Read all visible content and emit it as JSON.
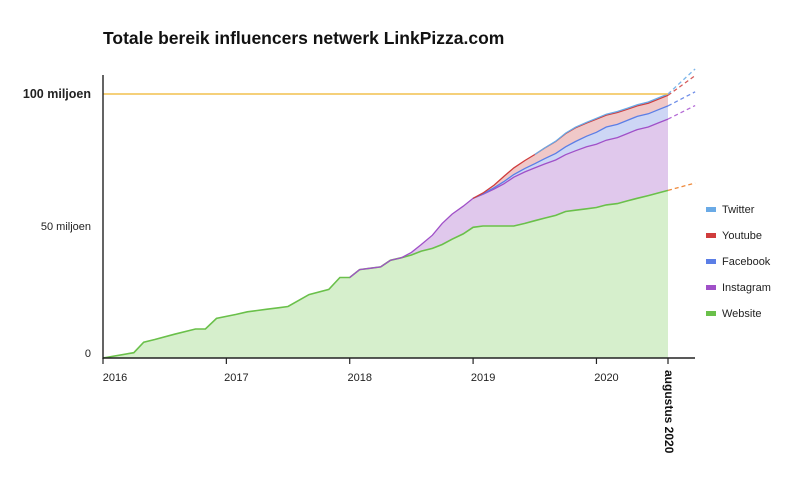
{
  "chart_data": {
    "type": "area",
    "title": "Totale bereik influencers netwerk LinkPizza.com",
    "xlabel": "",
    "ylabel": "",
    "x_ticks": [
      "2016",
      "2017",
      "2018",
      "2019",
      "2020"
    ],
    "y_ticks": [
      {
        "value": 0,
        "label": "0"
      },
      {
        "value": 50000000,
        "label": "50 miljoen"
      },
      {
        "value": 100000000,
        "label": "100 miljoen"
      }
    ],
    "ylim": [
      0,
      100000000
    ],
    "reference_line": {
      "value": 100000000,
      "color": "#f2c14e"
    },
    "end_label": "augustus 2020",
    "end_date": "2020.58",
    "legend_position": "right",
    "stacked": true,
    "series_order_bottom_to_top": [
      "Website",
      "Instagram",
      "Facebook",
      "Youtube",
      "Twitter"
    ],
    "legend": [
      "Twitter",
      "Youtube",
      "Facebook",
      "Instagram",
      "Website"
    ],
    "colors": {
      "Website": "#6ac04a",
      "Instagram": "#a050c8",
      "Facebook": "#5b7ee6",
      "Youtube": "#d03c3c",
      "Twitter": "#6aaae6"
    },
    "fills": {
      "Website": "#d6efcc",
      "Instagram": "#e0c8ec",
      "Facebook": "#cdd6f5",
      "Youtube": "#f0c8c8",
      "Twitter": "#cde2f5"
    },
    "projection_colors": {
      "Website": "#ee8a3c",
      "Instagram": "#b46ad6",
      "Facebook": "#6f8ee8",
      "Youtube": "#d55a5a",
      "Twitter": "#7cb6ea"
    },
    "series": [
      {
        "name": "Website",
        "x": [
          2016.0,
          2016.25,
          2016.33,
          2016.42,
          2016.58,
          2016.75,
          2016.83,
          2016.92,
          2017.08,
          2017.17,
          2017.25,
          2017.33,
          2017.42,
          2017.5,
          2017.67,
          2017.83,
          2017.92,
          2018.0,
          2018.08,
          2018.17,
          2018.25,
          2018.33,
          2018.42,
          2018.5,
          2018.58,
          2018.67,
          2018.75,
          2018.83,
          2018.92,
          2019.0,
          2019.08,
          2019.17,
          2019.25,
          2019.33,
          2019.42,
          2019.5,
          2019.58,
          2019.67,
          2019.75,
          2019.83,
          2019.92,
          2020.0,
          2020.08,
          2020.17,
          2020.25,
          2020.33,
          2020.42,
          2020.5,
          2020.58
        ],
        "values": [
          0,
          2000000,
          6000000,
          7000000,
          9000000,
          11000000,
          11000000,
          15000000,
          16500000,
          17500000,
          18000000,
          18500000,
          19000000,
          19500000,
          24000000,
          26000000,
          30500000,
          30500000,
          33500000,
          34000000,
          34500000,
          37000000,
          38000000,
          39000000,
          40500000,
          41500000,
          43000000,
          45000000,
          47000000,
          49500000,
          50000000,
          50000000,
          50000000,
          50000000,
          51000000,
          52000000,
          53000000,
          54000000,
          55500000,
          56000000,
          56500000,
          57000000,
          58000000,
          58500000,
          59500000,
          60500000,
          61500000,
          62500000,
          63500000
        ]
      },
      {
        "name": "Instagram",
        "x": [
          2018.0,
          2018.08,
          2018.17,
          2018.25,
          2018.33,
          2018.42,
          2018.5,
          2018.58,
          2018.67,
          2018.75,
          2018.83,
          2018.92,
          2019.0,
          2019.08,
          2019.17,
          2019.25,
          2019.33,
          2019.42,
          2019.5,
          2019.58,
          2019.67,
          2019.75,
          2019.83,
          2019.92,
          2020.0,
          2020.08,
          2020.17,
          2020.25,
          2020.33,
          2020.42,
          2020.5,
          2020.58
        ],
        "values": [
          0,
          0,
          0,
          0,
          0,
          0,
          1000000,
          2500000,
          5000000,
          8000000,
          9500000,
          10500000,
          11000000,
          12000000,
          14000000,
          16000000,
          18500000,
          19500000,
          20000000,
          20500000,
          21000000,
          21500000,
          22500000,
          23500000,
          24000000,
          24500000,
          25000000,
          25500000,
          26000000,
          26000000,
          26500000,
          27000000
        ]
      },
      {
        "name": "Facebook",
        "x": [
          2019.0,
          2019.08,
          2019.17,
          2019.25,
          2019.33,
          2019.42,
          2019.5,
          2019.58,
          2019.67,
          2019.75,
          2019.83,
          2019.92,
          2020.0,
          2020.08,
          2020.17,
          2020.25,
          2020.33,
          2020.42,
          2020.5,
          2020.58
        ],
        "values": [
          0,
          200000,
          500000,
          800000,
          1000000,
          1300000,
          1600000,
          2000000,
          2500000,
          3000000,
          3500000,
          4000000,
          4500000,
          5000000,
          5000000,
          5000000,
          5000000,
          5000000,
          5000000,
          5000000
        ]
      },
      {
        "name": "Youtube",
        "x": [
          2019.0,
          2019.08,
          2019.17,
          2019.25,
          2019.33,
          2019.42,
          2019.5,
          2019.58,
          2019.67,
          2019.75,
          2019.83,
          2019.92,
          2020.0,
          2020.08,
          2020.17,
          2020.25,
          2020.33,
          2020.42,
          2020.5,
          2020.58
        ],
        "values": [
          0,
          300000,
          1000000,
          2000000,
          2500000,
          3000000,
          3500000,
          4000000,
          4500000,
          5000000,
          5200000,
          5000000,
          5000000,
          4500000,
          4500000,
          4200000,
          4000000,
          4000000,
          4000000,
          4000000
        ]
      },
      {
        "name": "Twitter",
        "x": [
          2019.5,
          2019.75,
          2020.0,
          2020.25,
          2020.58
        ],
        "values": [
          0,
          200000,
          300000,
          400000,
          500000
        ]
      }
    ]
  }
}
